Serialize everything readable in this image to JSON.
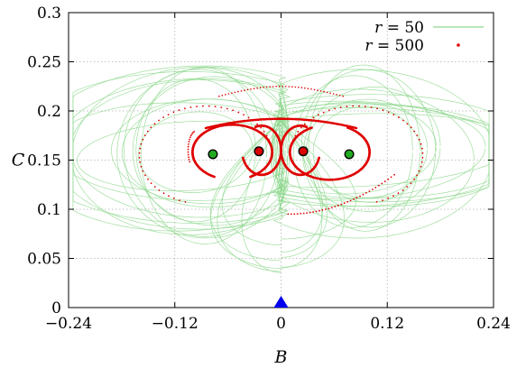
{
  "chart_data": {
    "type": "line",
    "xlabel": "B",
    "ylabel": "C",
    "xlim": [
      -0.24,
      0.24
    ],
    "ylim": [
      0,
      0.3
    ],
    "x_ticks": [
      -0.24,
      -0.12,
      0,
      0.12,
      0.24
    ],
    "x_tick_labels": [
      "−0.24",
      "−0.12",
      "0",
      "0.12",
      "0.24"
    ],
    "y_ticks": [
      0,
      0.05,
      0.1,
      0.15,
      0.2,
      0.25,
      0.3
    ],
    "y_tick_labels": [
      "0",
      "0.05",
      "0.1",
      "0.15",
      "0.2",
      "0.25",
      "0.3"
    ],
    "grid": true,
    "legend_position": "top-right",
    "series": [
      {
        "name": "r = 50",
        "legend_var": "r",
        "legend_value": "50",
        "style": "line",
        "color": "#8fd88f",
        "description_points": [
          [
            -0.07,
            0.155
          ],
          [
            0.07,
            0.155
          ]
        ]
      },
      {
        "name": "r = 500",
        "legend_var": "r",
        "legend_value": "500",
        "style": "points",
        "color": "#e00000"
      }
    ],
    "fixed_points": {
      "green": [
        [
          -0.077,
          0.156
        ],
        [
          0.077,
          0.156
        ]
      ],
      "red": [
        [
          -0.025,
          0.159
        ],
        [
          0.025,
          0.159
        ]
      ]
    },
    "marker_triangle": [
      0,
      0
    ],
    "colors": {
      "green_point_fill": "#22aa22",
      "red_point_fill": "#dd0000",
      "triangle_fill": "#0000ee"
    }
  }
}
